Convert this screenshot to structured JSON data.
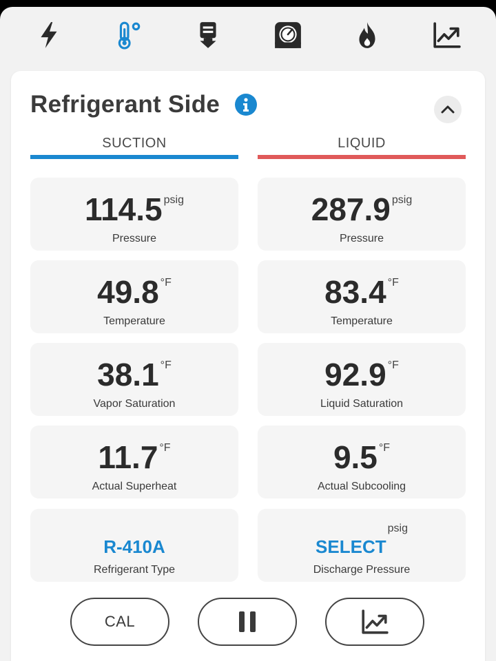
{
  "toolbar": {
    "items": [
      {
        "icon": "lightning-bolt-icon",
        "active": false
      },
      {
        "icon": "thermometer-icon",
        "active": true
      },
      {
        "icon": "download-device-icon",
        "active": false
      },
      {
        "icon": "gauge-icon",
        "active": false
      },
      {
        "icon": "flame-icon",
        "active": false
      },
      {
        "icon": "trend-chart-icon",
        "active": false
      }
    ],
    "active_color": "#1a88d0",
    "icon_color": "#2a2a2a"
  },
  "card": {
    "title": "Refrigerant Side",
    "info_icon": "info-icon",
    "collapse_icon": "chevron-up-icon"
  },
  "columns": {
    "suction": {
      "header": "SUCTION",
      "color": "#1a88d0",
      "tiles": [
        {
          "value": "114.5",
          "unit": "psig",
          "label": "Pressure"
        },
        {
          "value": "49.8",
          "unit": "°F",
          "label": "Temperature"
        },
        {
          "value": "38.1",
          "unit": "°F",
          "label": "Vapor Saturation"
        },
        {
          "value": "11.7",
          "unit": "°F",
          "label": "Actual Superheat"
        },
        {
          "value": "R-410A",
          "unit": "",
          "label": "Refrigerant Type"
        }
      ]
    },
    "liquid": {
      "header": "LIQUID",
      "color": "#e05a5a",
      "tiles": [
        {
          "value": "287.9",
          "unit": "psig",
          "label": "Pressure"
        },
        {
          "value": "83.4",
          "unit": "°F",
          "label": "Temperature"
        },
        {
          "value": "92.9",
          "unit": "°F",
          "label": "Liquid Saturation"
        },
        {
          "value": "9.5",
          "unit": "°F",
          "label": "Actual Subcooling"
        },
        {
          "value": "SELECT",
          "unit": "psig",
          "label": "Discharge Pressure"
        }
      ]
    }
  },
  "actions": {
    "cal_label": "CAL",
    "pause_icon": "pause-icon",
    "chart_icon": "trend-chart-icon"
  }
}
